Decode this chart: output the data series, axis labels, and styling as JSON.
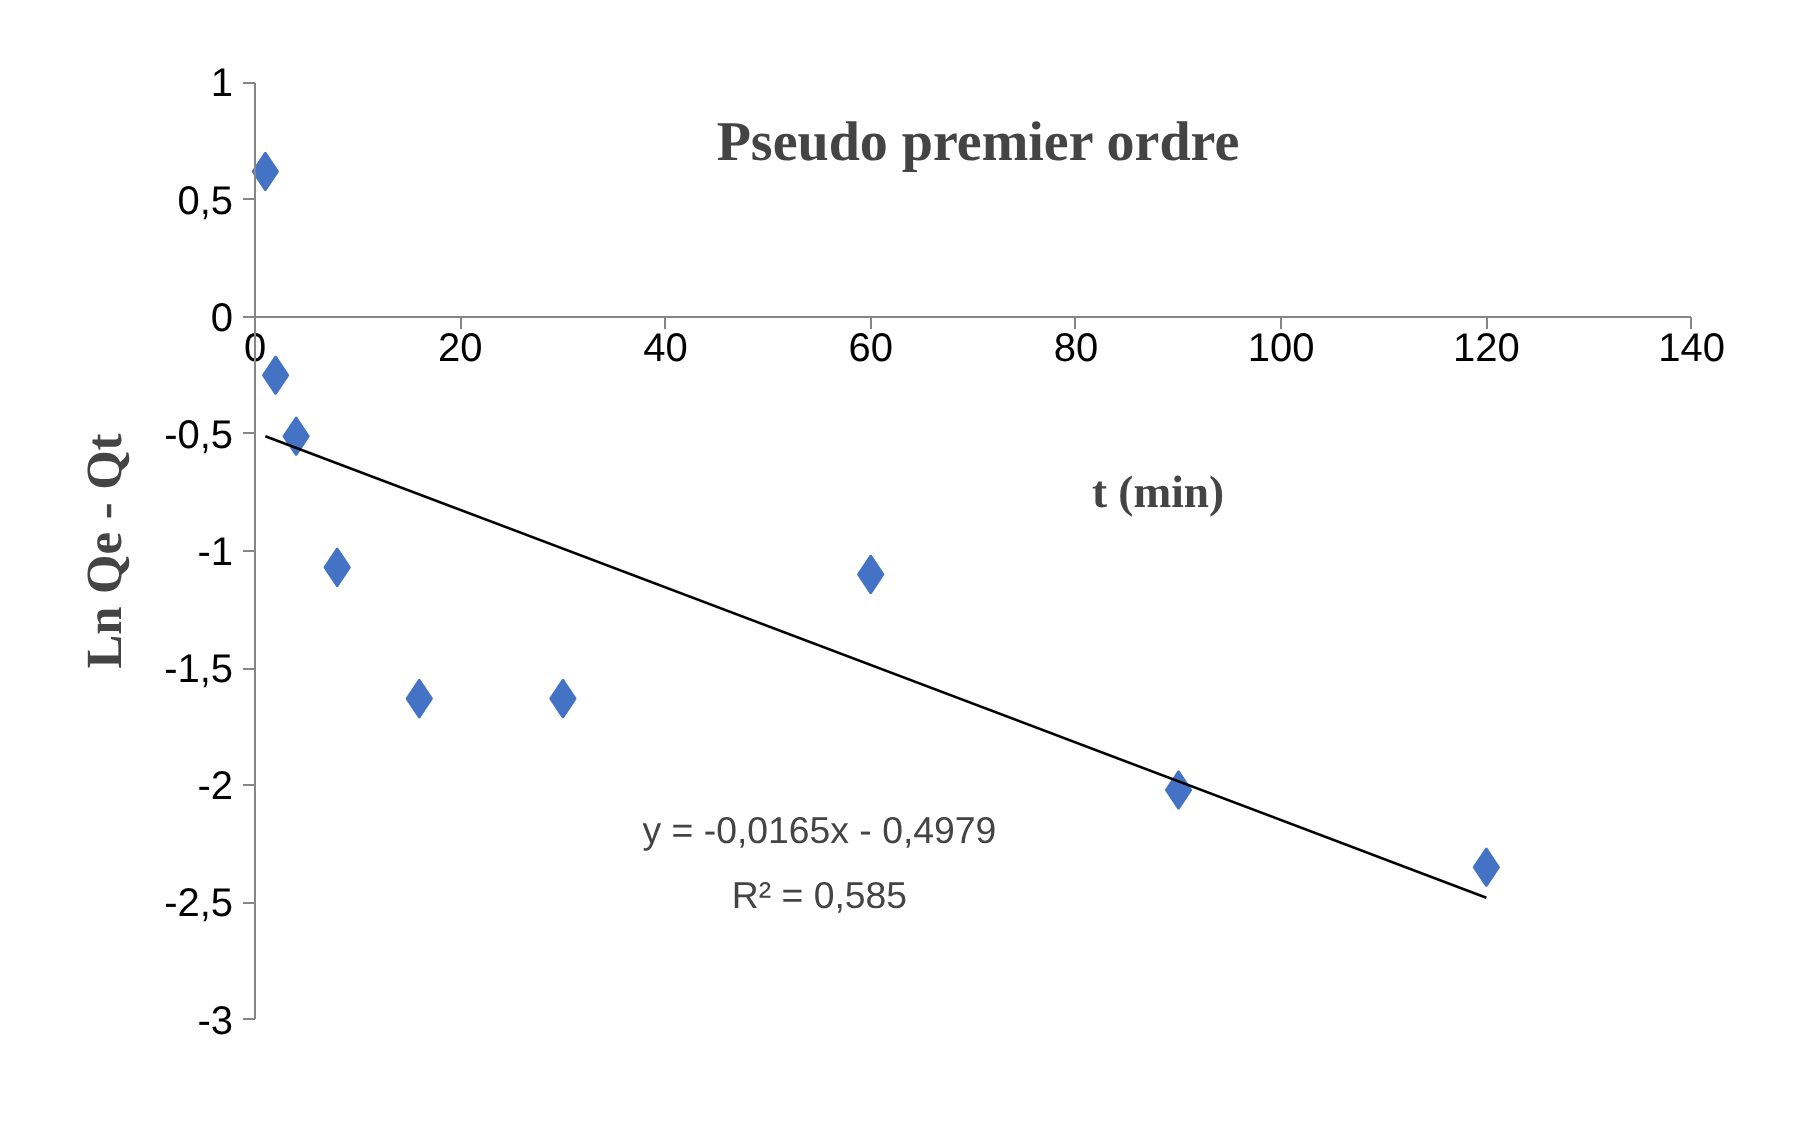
{
  "chart_data": {
    "type": "scatter",
    "title": "Pseudo premier ordre",
    "xlabel": "t (min)",
    "ylabel": "Ln Qe - Qt",
    "xlim": [
      0,
      140
    ],
    "ylim": [
      -3,
      1
    ],
    "xticks": [
      0,
      20,
      40,
      60,
      80,
      100,
      120,
      140
    ],
    "yticks": [
      {
        "value": 1,
        "label": "1"
      },
      {
        "value": 0.5,
        "label": "0,5"
      },
      {
        "value": 0,
        "label": "0"
      },
      {
        "value": -0.5,
        "label": "-0,5"
      },
      {
        "value": -1,
        "label": "-1"
      },
      {
        "value": -1.5,
        "label": "-1,5"
      },
      {
        "value": -2,
        "label": "-2"
      },
      {
        "value": -2.5,
        "label": "-2,5"
      },
      {
        "value": -3,
        "label": "-3"
      }
    ],
    "grid": false,
    "annotations": [
      "y = -0,0165x - 0,4979",
      "R² = 0,585"
    ],
    "series": [
      {
        "marker": "diamond",
        "color": "#4472c4",
        "x": [
          1,
          2,
          4,
          8,
          16,
          30,
          60,
          90,
          120
        ],
        "values": [
          0.62,
          -0.25,
          -0.51,
          -1.07,
          -1.63,
          -1.63,
          -1.1,
          -2.02,
          -2.35
        ]
      },
      {
        "type": "line",
        "color": "#000000",
        "x": [
          1,
          120
        ],
        "values": [
          -0.51,
          -2.48
        ],
        "line_style": "solid"
      }
    ]
  }
}
